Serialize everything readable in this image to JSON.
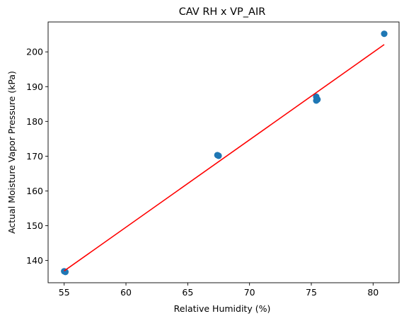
{
  "chart_data": {
    "type": "scatter",
    "title": "CAV RH x VP_AIR",
    "xlabel": "Relative Humidity (%)",
    "ylabel": "Actual Moisture Vapor Pressure (kPa)",
    "xlim": [
      53.7,
      82.1
    ],
    "ylim": [
      133.6,
      208.6
    ],
    "xticks": [
      55,
      60,
      65,
      70,
      75,
      80
    ],
    "yticks": [
      140,
      150,
      160,
      170,
      180,
      190,
      200
    ],
    "grid": false,
    "series": [
      {
        "kind": "scatter",
        "color": "#1f77b4",
        "points": [
          {
            "x": 55.0,
            "y": 136.9
          },
          {
            "x": 55.1,
            "y": 136.7
          },
          {
            "x": 67.4,
            "y": 170.3
          },
          {
            "x": 67.5,
            "y": 170.1
          },
          {
            "x": 75.4,
            "y": 187.1
          },
          {
            "x": 75.4,
            "y": 186.0
          },
          {
            "x": 75.5,
            "y": 186.3
          },
          {
            "x": 80.9,
            "y": 205.2
          }
        ]
      },
      {
        "kind": "line",
        "color": "#ff0000",
        "points": [
          {
            "x": 55.0,
            "y": 137.0
          },
          {
            "x": 80.9,
            "y": 202.1
          }
        ]
      }
    ]
  }
}
